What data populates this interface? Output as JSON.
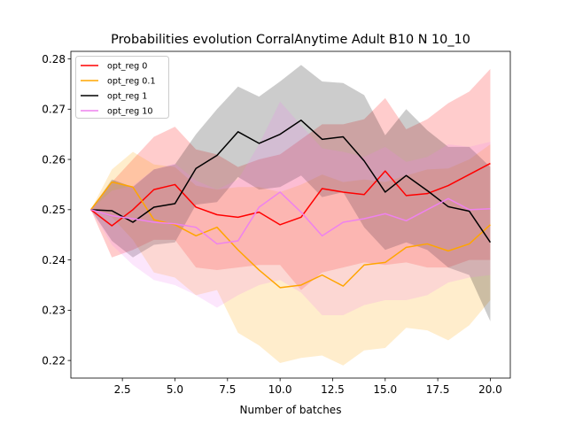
{
  "chart_data": {
    "type": "line",
    "title": "Probabilities evolution CorralAnytime Adult B10 N 10_10",
    "xlabel": "Number of batches",
    "ylabel": "",
    "xlim": [
      0.05,
      20.95
    ],
    "ylim": [
      0.2165,
      0.2815
    ],
    "xticks": [
      2.5,
      5.0,
      7.5,
      10.0,
      12.5,
      15.0,
      17.5,
      20.0
    ],
    "xtick_labels": [
      "2.5",
      "5.0",
      "7.5",
      "10.0",
      "12.5",
      "15.0",
      "17.5",
      "20.0"
    ],
    "yticks": [
      0.22,
      0.23,
      0.24,
      0.25,
      0.26,
      0.27,
      0.28
    ],
    "ytick_labels": [
      "0.22",
      "0.23",
      "0.24",
      "0.25",
      "0.26",
      "0.27",
      "0.28"
    ],
    "grid": false,
    "legend_position": "top-left",
    "x": [
      1,
      2,
      3,
      4,
      5,
      6,
      7,
      8,
      9,
      10,
      11,
      12,
      13,
      14,
      15,
      16,
      17,
      18,
      19,
      20
    ],
    "series": [
      {
        "name": "opt_reg 0",
        "color": "#ff0000",
        "values": [
          0.25,
          0.2468,
          0.25,
          0.254,
          0.255,
          0.2505,
          0.249,
          0.2485,
          0.2495,
          0.247,
          0.2485,
          0.2542,
          0.2535,
          0.253,
          0.2577,
          0.2528,
          0.2532,
          0.2548,
          0.257,
          0.2592
        ],
        "upper": [
          0.25,
          0.2555,
          0.26,
          0.2645,
          0.2665,
          0.262,
          0.261,
          0.2585,
          0.26,
          0.261,
          0.264,
          0.267,
          0.267,
          0.268,
          0.2722,
          0.266,
          0.268,
          0.2712,
          0.2735,
          0.278
        ],
        "lower": [
          0.25,
          0.2405,
          0.242,
          0.244,
          0.244,
          0.2385,
          0.238,
          0.2385,
          0.239,
          0.239,
          0.234,
          0.2375,
          0.2385,
          0.2395,
          0.239,
          0.2395,
          0.2385,
          0.2385,
          0.24,
          0.24
        ]
      },
      {
        "name": "opt_reg 0.1",
        "color": "#ffa500",
        "values": [
          0.25,
          0.2555,
          0.2545,
          0.248,
          0.247,
          0.2448,
          0.2465,
          0.242,
          0.238,
          0.2345,
          0.235,
          0.237,
          0.2348,
          0.239,
          0.2395,
          0.2425,
          0.2432,
          0.2418,
          0.2432,
          0.247
        ],
        "upper": [
          0.25,
          0.258,
          0.2615,
          0.259,
          0.2585,
          0.2548,
          0.254,
          0.2545,
          0.2545,
          0.2535,
          0.255,
          0.257,
          0.2555,
          0.256,
          0.2555,
          0.2568,
          0.258,
          0.2582,
          0.26,
          0.263
        ],
        "lower": [
          0.25,
          0.2485,
          0.244,
          0.2375,
          0.2365,
          0.233,
          0.234,
          0.2255,
          0.223,
          0.2195,
          0.2205,
          0.221,
          0.219,
          0.222,
          0.2225,
          0.2265,
          0.226,
          0.224,
          0.227,
          0.232
        ]
      },
      {
        "name": "opt_reg 1",
        "color": "#000000",
        "values": [
          0.25,
          0.2498,
          0.2475,
          0.2505,
          0.2512,
          0.2582,
          0.2608,
          0.2655,
          0.2632,
          0.265,
          0.2678,
          0.264,
          0.2645,
          0.2597,
          0.2535,
          0.2568,
          0.2538,
          0.2506,
          0.2497,
          0.2435
        ],
        "upper": [
          0.25,
          0.256,
          0.2545,
          0.258,
          0.259,
          0.265,
          0.27,
          0.2745,
          0.2725,
          0.2755,
          0.2788,
          0.2755,
          0.2752,
          0.2728,
          0.2648,
          0.27,
          0.2658,
          0.2625,
          0.2625,
          0.2585
        ],
        "lower": [
          0.25,
          0.2438,
          0.2405,
          0.243,
          0.2435,
          0.251,
          0.2515,
          0.2565,
          0.254,
          0.2545,
          0.2568,
          0.2525,
          0.2535,
          0.2465,
          0.242,
          0.2435,
          0.242,
          0.2385,
          0.237,
          0.2278
        ]
      },
      {
        "name": "opt_reg 10",
        "color": "#ee82ee",
        "values": [
          0.25,
          0.2488,
          0.2482,
          0.2475,
          0.2472,
          0.2465,
          0.2432,
          0.2438,
          0.2505,
          0.2535,
          0.2495,
          0.2448,
          0.2475,
          0.2482,
          0.2492,
          0.2478,
          0.25,
          0.2522,
          0.25,
          0.2502
        ],
        "upper": [
          0.25,
          0.2538,
          0.2548,
          0.258,
          0.2592,
          0.2558,
          0.254,
          0.256,
          0.263,
          0.2715,
          0.2668,
          0.2622,
          0.2615,
          0.2605,
          0.2625,
          0.2595,
          0.2605,
          0.263,
          0.2625,
          0.2635
        ],
        "lower": [
          0.25,
          0.243,
          0.239,
          0.236,
          0.235,
          0.233,
          0.2305,
          0.233,
          0.235,
          0.236,
          0.2335,
          0.229,
          0.229,
          0.231,
          0.232,
          0.232,
          0.233,
          0.2355,
          0.2365,
          0.237
        ]
      }
    ]
  }
}
